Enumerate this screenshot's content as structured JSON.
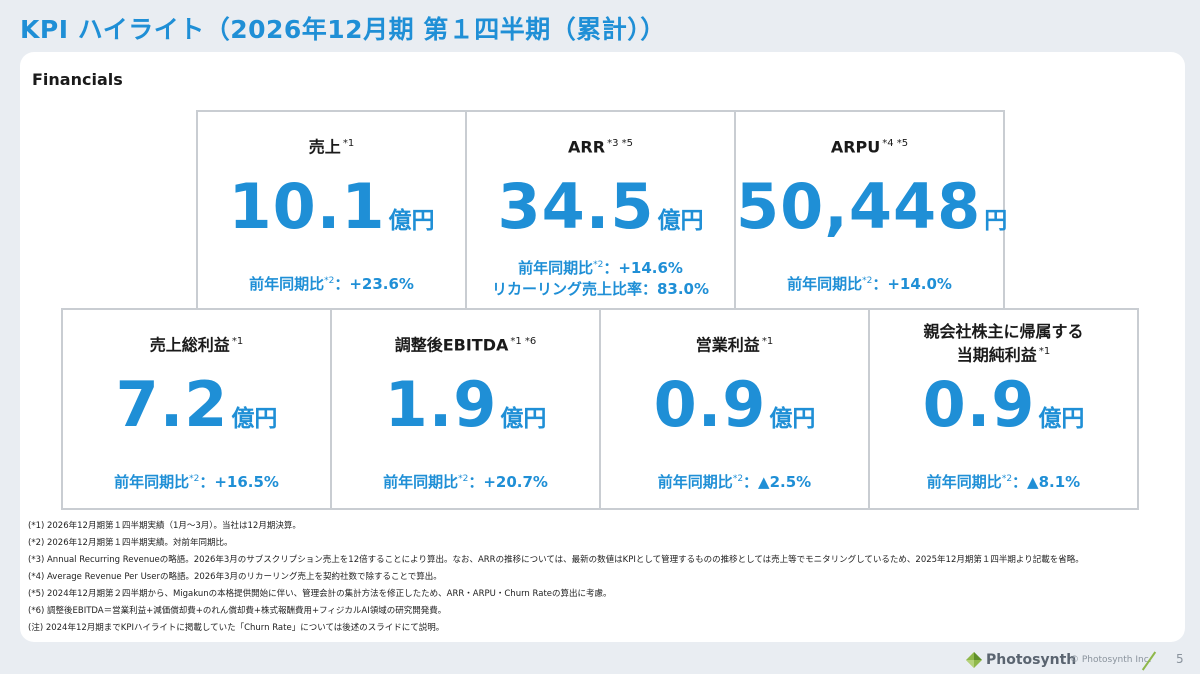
{
  "title": "KPI ハイライト（2026年12月期 第１四半期（累計））",
  "section_label": "Financials",
  "kpis": [
    {
      "label": "売上",
      "note": "*1",
      "value": "10.1",
      "unit": "億円",
      "sub1_label": "前年同期比",
      "sub1_note": "*2",
      "sub1_value": "：+23.6%",
      "sub2": ""
    },
    {
      "label": "ARR",
      "note": "*3 *5",
      "value": "34.5",
      "unit": "億円",
      "sub1_label": "前年同期比",
      "sub1_note": "*2",
      "sub1_value": "：+14.6%",
      "sub2": "リカーリング売上比率：83.0%"
    },
    {
      "label": "ARPU",
      "note": "*4 *5",
      "value": "50,448",
      "unit": "円",
      "sub1_label": "前年同期比",
      "sub1_note": "*2",
      "sub1_value": "：+14.0%",
      "sub2": ""
    },
    {
      "label": "売上総利益",
      "note": "*1",
      "value": "7.2",
      "unit": "億円",
      "sub1_label": "前年同期比",
      "sub1_note": "*2",
      "sub1_value": "：+16.5%",
      "sub2": ""
    },
    {
      "label": "調整後EBITDA",
      "note": "*1 *6",
      "value": "1.9",
      "unit": "億円",
      "sub1_label": "前年同期比",
      "sub1_note": "*2",
      "sub1_value": "：+20.7%",
      "sub2": ""
    },
    {
      "label": "営業利益",
      "note": "*1",
      "value": "0.9",
      "unit": "億円",
      "sub1_label": "前年同期比",
      "sub1_note": "*2",
      "sub1_value": "：▲2.5%",
      "sub2": ""
    },
    {
      "label": "親会社株主に帰属する",
      "label2": "当期純利益",
      "note": "*1",
      "value": "0.9",
      "unit": "億円",
      "sub1_label": "前年同期比",
      "sub1_note": "*2",
      "sub1_value": "：▲8.1%",
      "sub2": ""
    }
  ],
  "footnotes": [
    "(*1) 2026年12月期第１四半期実績（1月～3月）。当社は12月期決算。",
    "(*2) 2026年12月期第１四半期実績。対前年同期比。",
    "(*3) Annual Recurring Revenueの略語。2026年3月のサブスクリプション売上を12倍することにより算出。なお、ARRの推移については、最新の数値はKPIとして管理するものの推移としては売上等でモニタリングしているため、2025年12月期第１四半期より記載を省略。",
    "(*4) Average Revenue Per Userの略語。2026年3月のリカーリング売上を契約社数で除することで算出。",
    "(*5) 2024年12月期第２四半期から、Migakunの本格提供開始に伴い、管理会計の集計方法を修正したため、ARR・ARPU・Churn Rateの算出に考慮。",
    "(*6) 調整後EBITDA＝営業利益+減価償却費+のれん償却費+株式報酬費用+フィジカルAI領域の研究開発費。",
    "(注) 2024年12月期までKPIハイライトに掲載していた「Churn Rate」については後述のスライドにて説明。"
  ],
  "footer": {
    "brand": "Photosynth",
    "copyright": "© Photosynth Inc.",
    "page": "5"
  },
  "colors": {
    "accent": "#1f8fd6",
    "logo_green": "#8fb84a"
  }
}
